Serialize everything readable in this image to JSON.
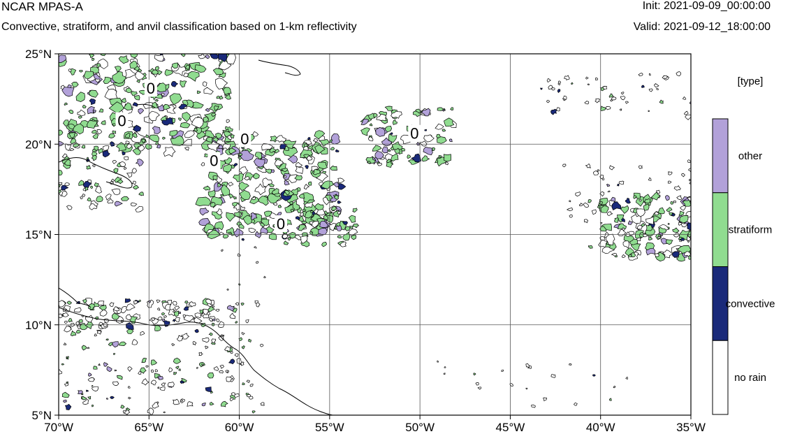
{
  "header": {
    "title": "NCAR MPAS-A",
    "subtitle": "Convective, stratiform, and anvil classification based on 1-km reflectivity",
    "init": "Init: 2021-09-09_00:00:00",
    "valid": "Valid: 2021-09-12_18:00:00"
  },
  "map": {
    "lon_range": [
      -70,
      -35
    ],
    "lat_range": [
      5,
      25
    ],
    "lon_ticks": [
      -70,
      -65,
      -60,
      -55,
      -50,
      -45,
      -40,
      -35
    ],
    "lat_ticks": [
      5,
      10,
      15,
      20,
      25
    ],
    "lon_tick_labels": [
      "70°W",
      "65°W",
      "60°W",
      "55°W",
      "50°W",
      "45°W",
      "40°W",
      "35°W"
    ],
    "lat_tick_labels": [
      "5°N",
      "10°N",
      "15°N",
      "20°N",
      "25°N"
    ],
    "grid": true,
    "contour_labels": [
      {
        "text": "0",
        "lon": -64.9,
        "lat": 23.1
      },
      {
        "text": "0",
        "lon": -66.5,
        "lat": 21.3
      },
      {
        "text": "0",
        "lon": -59.7,
        "lat": 20.3
      },
      {
        "text": "0",
        "lon": -61.4,
        "lat": 19.1
      },
      {
        "text": "0",
        "lon": -50.3,
        "lat": 20.6
      },
      {
        "text": "0",
        "lon": -57.7,
        "lat": 15.6
      }
    ]
  },
  "legend": {
    "title": "[type]",
    "placement": "right",
    "items": [
      {
        "label": "other",
        "color": "#b2a1d9"
      },
      {
        "label": "stratiform",
        "color": "#90dc90"
      },
      {
        "label": "convective",
        "color": "#1a2a7a"
      },
      {
        "label": "no rain",
        "color": "#ffffff"
      }
    ]
  },
  "colors": {
    "other": "#b2a1d9",
    "stratiform": "#90dc90",
    "convective": "#1a2a7a",
    "no_rain": "#ffffff",
    "coastline": "#000000",
    "grid": "#555555"
  }
}
